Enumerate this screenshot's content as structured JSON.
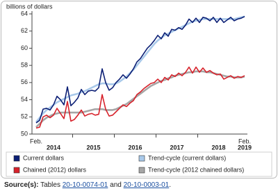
{
  "chart_data": {
    "type": "line",
    "y_axis_label": "billions of dollars",
    "categories": [
      "Feb.",
      null,
      null,
      null,
      null,
      null,
      null,
      null,
      null,
      null,
      null,
      null,
      null,
      null,
      null,
      null,
      null,
      null,
      null,
      null,
      null,
      null,
      null,
      null,
      null,
      null,
      null,
      null,
      null,
      null,
      null,
      null,
      null,
      null,
      null,
      null,
      null,
      null,
      null,
      null,
      null,
      null,
      null,
      null,
      null,
      null,
      null,
      null,
      null,
      null,
      null,
      null,
      null,
      null,
      null,
      null,
      null,
      null,
      null,
      null,
      "Feb."
    ],
    "years": [
      "2014",
      "2015",
      "2016",
      "2017",
      "2018",
      "2019"
    ],
    "ylim": [
      50,
      64
    ],
    "yticks": [
      50,
      52,
      54,
      56,
      58,
      60,
      62,
      64
    ],
    "grid": false,
    "series": [
      {
        "name": "Trend-cycle (current dollars)",
        "color": "#a9c9ea",
        "values": [
          51.4,
          51.9,
          52.4,
          52.8,
          53.1,
          53.4,
          53.7,
          53.9,
          54.1,
          54.3,
          54.5,
          54.6,
          54.7,
          54.9,
          55.0,
          55.2,
          55.4,
          55.6,
          55.8,
          55.9,
          55.9,
          55.8,
          55.8,
          55.9,
          56.1,
          56.4,
          56.7,
          57.1,
          57.5,
          58.0,
          58.5,
          59.0,
          59.5,
          60.0,
          60.5,
          60.9,
          61.2,
          61.5,
          61.7,
          61.9,
          62.1,
          62.3,
          62.5,
          62.7,
          62.9,
          63.1,
          63.2,
          63.3,
          63.4,
          63.4,
          63.4,
          63.4,
          63.4,
          63.4,
          63.4,
          63.4,
          63.4,
          63.4,
          63.5,
          63.6,
          63.7
        ]
      },
      {
        "name": "Trend-cycle (2012 chained dollars)",
        "color": "#a6a6a6",
        "values": [
          50.8,
          51.2,
          51.6,
          51.9,
          52.1,
          52.3,
          52.4,
          52.5,
          52.5,
          52.5,
          52.5,
          52.5,
          52.5,
          52.5,
          52.6,
          52.7,
          52.8,
          52.9,
          52.9,
          52.9,
          52.8,
          52.8,
          52.8,
          52.9,
          53.1,
          53.3,
          53.5,
          53.8,
          54.1,
          54.4,
          54.7,
          55.0,
          55.3,
          55.6,
          55.8,
          56.0,
          56.2,
          56.3,
          56.5,
          56.6,
          56.8,
          56.9,
          57.0,
          57.1,
          57.2,
          57.2,
          57.3,
          57.3,
          57.3,
          57.2,
          57.2,
          57.1,
          57.0,
          56.9,
          56.8,
          56.7,
          56.7,
          56.6,
          56.6,
          56.6,
          56.7
        ]
      },
      {
        "name": "Current dollars",
        "color": "#0c1f75",
        "values": [
          51.3,
          51.6,
          52.9,
          53.0,
          52.8,
          53.4,
          54.4,
          54.0,
          53.4,
          55.5,
          53.3,
          53.7,
          54.2,
          55.2,
          54.6,
          55.0,
          55.1,
          55.0,
          55.4,
          57.6,
          56.0,
          55.1,
          55.4,
          56.0,
          56.4,
          56.9,
          56.5,
          57.0,
          57.6,
          58.4,
          58.8,
          59.4,
          60.0,
          60.4,
          60.9,
          61.5,
          61.1,
          61.8,
          61.4,
          62.2,
          62.1,
          62.4,
          62.2,
          62.7,
          63.4,
          63.0,
          63.5,
          63.0,
          63.6,
          63.5,
          63.2,
          63.6,
          63.0,
          63.5,
          63.0,
          63.3,
          63.6,
          63.2,
          63.4,
          63.5,
          63.7
        ]
      },
      {
        "name": "Chained (2012) dollars",
        "color": "#d7222b",
        "values": [
          50.7,
          50.8,
          52.0,
          52.2,
          51.9,
          52.2,
          53.0,
          52.4,
          51.8,
          53.8,
          51.5,
          51.7,
          52.2,
          52.8,
          52.1,
          52.3,
          52.4,
          52.2,
          52.3,
          54.6,
          52.9,
          52.1,
          52.2,
          52.6,
          53.0,
          53.4,
          53.2,
          53.6,
          53.9,
          54.6,
          54.9,
          55.3,
          55.6,
          55.9,
          56.0,
          56.4,
          56.0,
          56.6,
          56.3,
          56.9,
          56.7,
          57.1,
          56.8,
          57.2,
          57.8,
          57.1,
          57.8,
          57.2,
          57.7,
          57.2,
          57.4,
          57.1,
          56.9,
          57.0,
          56.4,
          56.6,
          56.8,
          56.5,
          56.7,
          56.6,
          56.8
        ]
      }
    ],
    "legend_order": [
      2,
      0,
      3,
      1
    ]
  },
  "source": {
    "label": "Source(s):",
    "prefix": "Tables",
    "tables": [
      "20-10-0074-01",
      "20-10-0003-01"
    ],
    "joiner": "and",
    "suffix": "."
  }
}
